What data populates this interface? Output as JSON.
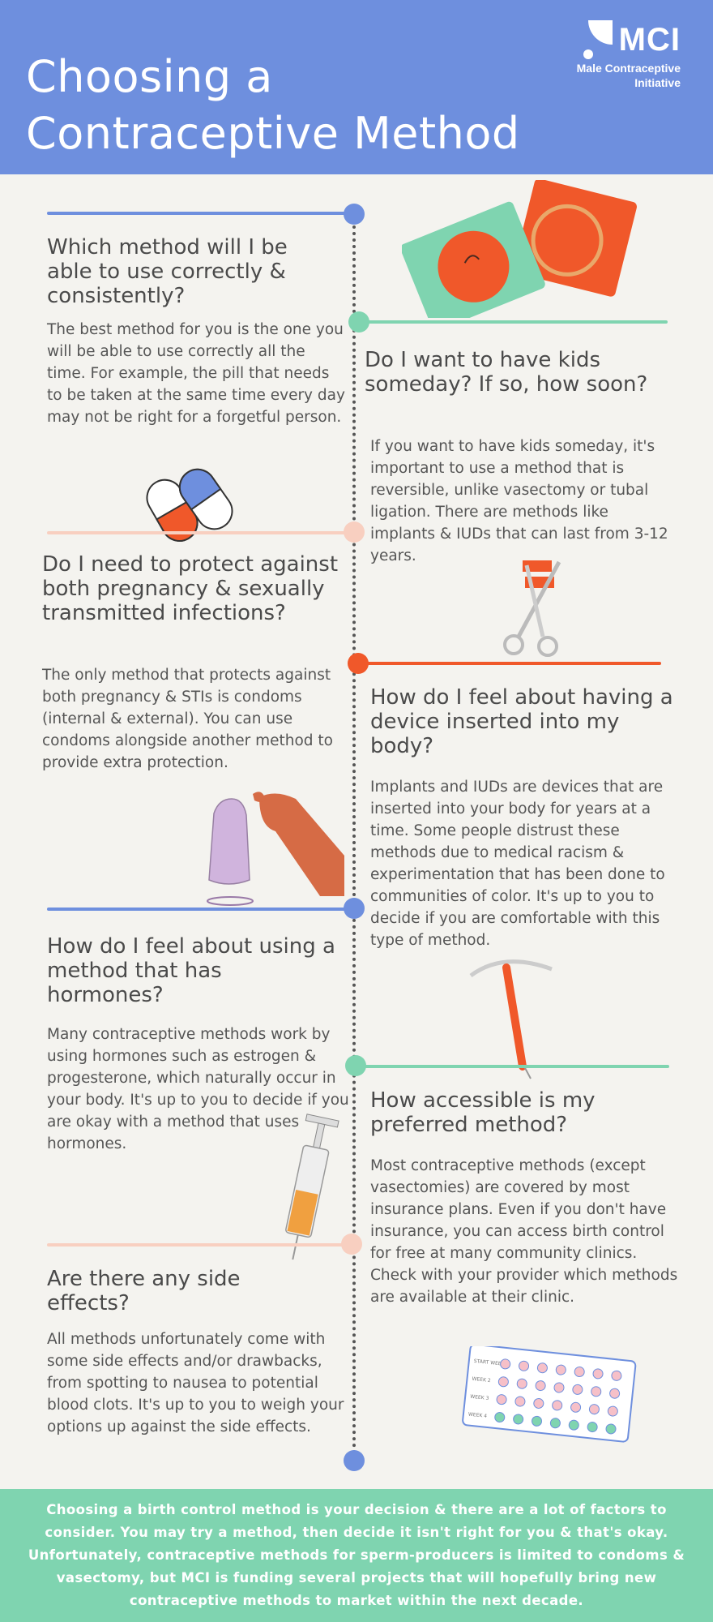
{
  "header": {
    "title_line1": "Choosing a",
    "title_line2": "Contraceptive Method",
    "logo_name": "MCI",
    "logo_sub_line1": "Male Contraceptive",
    "logo_sub_line2": "Initiative"
  },
  "sections": [
    {
      "question": "Which method will I be able to use correctly & consistently?",
      "body": "The best method for you is the one you will be able to use correctly all the time. For example, the pill that needs to be taken at the same time every day may not be right for a forgetful person."
    },
    {
      "question": "Do I want to have kids someday? If so, how soon?",
      "body": "If you want to have kids someday, it's important to use a method that is reversible, unlike vasectomy or tubal ligation. There are methods like implants & IUDs that can last from 3-12 years."
    },
    {
      "question": "Do I need to protect against both pregnancy & sexually transmitted infections?",
      "body": "The only method that protects against both pregnancy & STIs is condoms (internal & external). You can use condoms alongside another method to provide extra protection."
    },
    {
      "question": "How do I feel about having a device inserted into my body?",
      "body": "Implants and IUDs are devices that are inserted into your body for years at a time. Some people distrust these methods due to medical racism & experimentation that has been done to communities of color. It's up to you to decide if you are comfortable with this type of method."
    },
    {
      "question": "How do I feel about using a method that has hormones?",
      "body": "Many contraceptive methods work by using hormones such as estrogen & progesterone, which naturally occur in your body. It's up to you to decide if you are okay with a method that uses hormones."
    },
    {
      "question": "How accessible is my preferred method?",
      "body": "Most contraceptive methods (except vasectomies) are covered by most insurance plans. Even if you don't have insurance, you can access birth control for free at many community clinics. Check with your provider which methods are available at their clinic."
    },
    {
      "question": "Are there any side effects?",
      "body": "All methods unfortunately come with some side effects and/or drawbacks, from spotting to nausea to potential blood clots. It's up to you to weigh your options up against the side effects."
    }
  ],
  "calendar": {
    "week_labels": [
      "START WEEK",
      "WEEK 2",
      "WEEK 3",
      "WEEK 4"
    ]
  },
  "footer": {
    "text": "Choosing a birth control method is your decision & there are a lot of factors to consider. You may try a method, then decide it isn't right for you & that's okay. Unfortunately, contraceptive methods for sperm-producers is limited to condoms & vasectomy, but MCI is funding several projects that will hopefully bring new contraceptive methods to market within the next decade."
  },
  "colors": {
    "header_bg": "#6e8fde",
    "page_bg": "#f4f3ef",
    "accent_blue": "#6e8fde",
    "accent_green": "#7fd4b0",
    "accent_peach": "#f8cfc0",
    "accent_orange": "#f0582a",
    "footer_bg": "#7fd4b0"
  }
}
